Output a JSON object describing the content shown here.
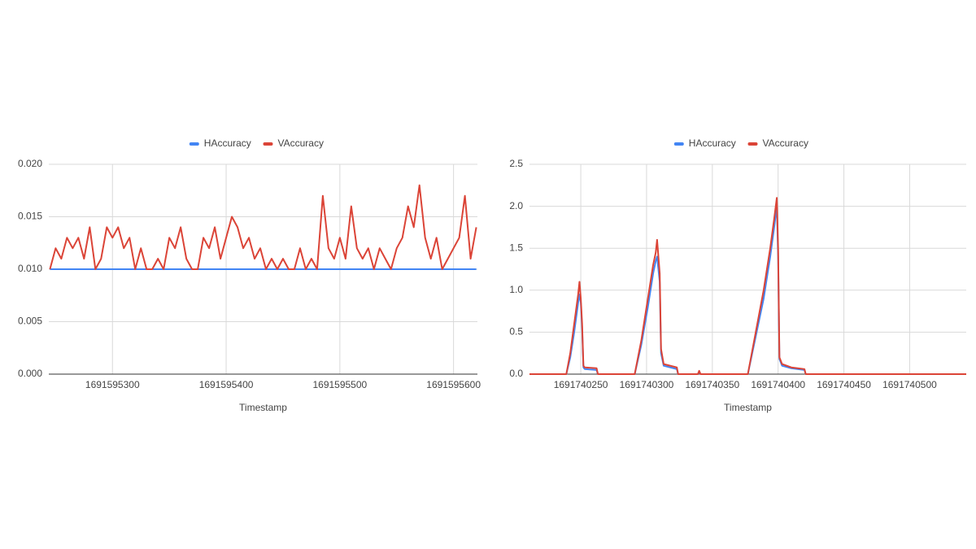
{
  "chart_data": [
    {
      "type": "line",
      "x_label": "Timestamp",
      "x": [
        1691595245,
        1691595250,
        1691595255,
        1691595260,
        1691595265,
        1691595270,
        1691595275,
        1691595280,
        1691595285,
        1691595290,
        1691595295,
        1691595300,
        1691595305,
        1691595310,
        1691595315,
        1691595320,
        1691595325,
        1691595330,
        1691595335,
        1691595340,
        1691595345,
        1691595350,
        1691595355,
        1691595360,
        1691595365,
        1691595370,
        1691595375,
        1691595380,
        1691595385,
        1691595390,
        1691595395,
        1691595400,
        1691595405,
        1691595410,
        1691595415,
        1691595420,
        1691595425,
        1691595430,
        1691595435,
        1691595440,
        1691595445,
        1691595450,
        1691595455,
        1691595460,
        1691595465,
        1691595470,
        1691595475,
        1691595480,
        1691595485,
        1691595490,
        1691595495,
        1691595500,
        1691595505,
        1691595510,
        1691595515,
        1691595520,
        1691595525,
        1691595530,
        1691595535,
        1691595540,
        1691595545,
        1691595550,
        1691595555,
        1691595560,
        1691595565,
        1691595570,
        1691595575,
        1691595580,
        1691595585,
        1691595590,
        1691595595,
        1691595600,
        1691595605,
        1691595610,
        1691595615,
        1691595620
      ],
      "series": [
        {
          "name": "HAccuracy",
          "color": "#4285f4",
          "values": [
            0.01,
            0.01,
            0.01,
            0.01,
            0.01,
            0.01,
            0.01,
            0.01,
            0.01,
            0.01,
            0.01,
            0.01,
            0.01,
            0.01,
            0.01,
            0.01,
            0.01,
            0.01,
            0.01,
            0.01,
            0.01,
            0.01,
            0.01,
            0.01,
            0.01,
            0.01,
            0.01,
            0.01,
            0.01,
            0.01,
            0.01,
            0.01,
            0.01,
            0.01,
            0.01,
            0.01,
            0.01,
            0.01,
            0.01,
            0.01,
            0.01,
            0.01,
            0.01,
            0.01,
            0.01,
            0.01,
            0.01,
            0.01,
            0.01,
            0.01,
            0.01,
            0.01,
            0.01,
            0.01,
            0.01,
            0.01,
            0.01,
            0.01,
            0.01,
            0.01,
            0.01,
            0.01,
            0.01,
            0.01,
            0.01,
            0.01,
            0.01,
            0.01,
            0.01,
            0.01,
            0.01,
            0.01,
            0.01,
            0.01,
            0.01,
            0.01
          ]
        },
        {
          "name": "VAccuracy",
          "color": "#db4437",
          "values": [
            0.01,
            0.012,
            0.011,
            0.013,
            0.012,
            0.013,
            0.011,
            0.014,
            0.01,
            0.011,
            0.014,
            0.013,
            0.014,
            0.012,
            0.013,
            0.01,
            0.012,
            0.01,
            0.01,
            0.011,
            0.01,
            0.013,
            0.012,
            0.014,
            0.011,
            0.01,
            0.01,
            0.013,
            0.012,
            0.014,
            0.011,
            0.013,
            0.015,
            0.014,
            0.012,
            0.013,
            0.011,
            0.012,
            0.01,
            0.011,
            0.01,
            0.011,
            0.01,
            0.01,
            0.012,
            0.01,
            0.011,
            0.01,
            0.017,
            0.012,
            0.011,
            0.013,
            0.011,
            0.016,
            0.012,
            0.011,
            0.012,
            0.01,
            0.012,
            0.011,
            0.01,
            0.012,
            0.013,
            0.016,
            0.014,
            0.018,
            0.013,
            0.011,
            0.013,
            0.01,
            0.011,
            0.012,
            0.013,
            0.017,
            0.011,
            0.014
          ]
        }
      ],
      "xlim": [
        1691595244,
        1691595621
      ],
      "xticks": [
        1691595300,
        1691595400,
        1691595500,
        1691595600
      ],
      "ylim": [
        0,
        0.02
      ],
      "yticks": [
        {
          "value": 0,
          "label": "0.000"
        },
        {
          "value": 0.005,
          "label": "0.005"
        },
        {
          "value": 0.01,
          "label": "0.010"
        },
        {
          "value": 0.015,
          "label": "0.015"
        },
        {
          "value": 0.02,
          "label": "0.020"
        }
      ],
      "grid": true,
      "legend": "top"
    },
    {
      "type": "line",
      "x_label": "Timestamp",
      "x": [
        1691740211,
        1691740239,
        1691740242,
        1691740245,
        1691740248,
        1691740249,
        1691740250,
        1691740251,
        1691740252,
        1691740253,
        1691740262,
        1691740263,
        1691740291,
        1691740296,
        1691740301,
        1691740305,
        1691740307,
        1691740308,
        1691740310,
        1691740311,
        1691740313,
        1691740323,
        1691740324,
        1691740339,
        1691740340,
        1691740341,
        1691740377,
        1691740383,
        1691740389,
        1691740394,
        1691740397,
        1691740399,
        1691740400,
        1691740401,
        1691740403,
        1691740410,
        1691740420,
        1691740421,
        1691740543
      ],
      "series": [
        {
          "name": "HAccuracy",
          "color": "#4285f4",
          "values": [
            0,
            0,
            0.2,
            0.5,
            0.85,
            0.95,
            0.85,
            0.55,
            0.08,
            0.06,
            0.05,
            0,
            0,
            0.35,
            0.8,
            1.2,
            1.35,
            1.4,
            1.1,
            0.25,
            0.1,
            0.06,
            0,
            0,
            0.03,
            0,
            0,
            0.45,
            0.9,
            1.4,
            1.75,
            2.0,
            1.4,
            0.18,
            0.1,
            0.07,
            0.05,
            0,
            0
          ]
        },
        {
          "name": "VAccuracy",
          "color": "#db4437",
          "values": [
            0,
            0,
            0.25,
            0.6,
            0.95,
            1.1,
            0.9,
            0.6,
            0.1,
            0.08,
            0.07,
            0,
            0,
            0.4,
            0.9,
            1.3,
            1.45,
            1.6,
            1.2,
            0.3,
            0.12,
            0.08,
            0,
            0,
            0.04,
            0,
            0,
            0.5,
            1.0,
            1.5,
            1.85,
            2.1,
            1.5,
            0.2,
            0.12,
            0.08,
            0.06,
            0,
            0
          ]
        }
      ],
      "xlim": [
        1691740211,
        1691740543
      ],
      "xticks": [
        1691740250,
        1691740300,
        1691740350,
        1691740400,
        1691740450,
        1691740500
      ],
      "ylim": [
        0,
        2.5
      ],
      "yticks": [
        {
          "value": 0,
          "label": "0.0"
        },
        0.5,
        {
          "value": 1,
          "label": "1.0"
        },
        1.5,
        {
          "value": 2,
          "label": "2.0"
        },
        2.5
      ],
      "grid": true,
      "legend": "top"
    }
  ]
}
